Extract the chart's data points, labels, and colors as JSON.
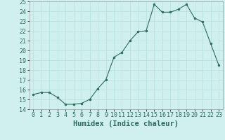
{
  "x": [
    0,
    1,
    2,
    3,
    4,
    5,
    6,
    7,
    8,
    9,
    10,
    11,
    12,
    13,
    14,
    15,
    16,
    17,
    18,
    19,
    20,
    21,
    22,
    23
  ],
  "y": [
    15.5,
    15.7,
    15.7,
    15.2,
    14.5,
    14.5,
    14.6,
    15.0,
    16.1,
    17.0,
    19.3,
    19.8,
    21.0,
    21.9,
    22.0,
    24.7,
    23.9,
    23.9,
    24.2,
    24.7,
    23.3,
    22.9,
    20.7,
    18.5
  ],
  "xlabel": "Humidex (Indice chaleur)",
  "ylim": [
    14,
    25
  ],
  "xlim": [
    -0.5,
    23.5
  ],
  "yticks": [
    14,
    15,
    16,
    17,
    18,
    19,
    20,
    21,
    22,
    23,
    24,
    25
  ],
  "xticks": [
    0,
    1,
    2,
    3,
    4,
    5,
    6,
    7,
    8,
    9,
    10,
    11,
    12,
    13,
    14,
    15,
    16,
    17,
    18,
    19,
    20,
    21,
    22,
    23
  ],
  "line_color": "#2d6b5e",
  "marker_color": "#2d6b5e",
  "bg_color": "#cff0ee",
  "grid_color": "#b8e0dc",
  "xlabel_fontsize": 7.5,
  "tick_fontsize": 6.0
}
